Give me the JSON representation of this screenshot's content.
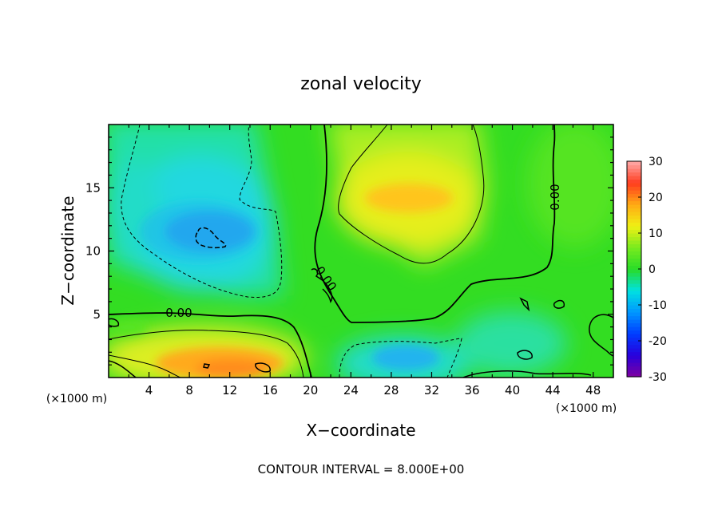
{
  "chart_data": {
    "type": "heatmap",
    "title": "zonal velocity",
    "xlabel": "X−coordinate",
    "ylabel": "Z−coordinate",
    "x_unit_left": "(×1000 m)",
    "x_unit_right": "(×1000 m)",
    "xlim": [
      0,
      50
    ],
    "ylim": [
      0,
      20
    ],
    "x_ticks": [
      4,
      8,
      12,
      16,
      20,
      24,
      28,
      32,
      36,
      40,
      44,
      48
    ],
    "y_ticks": [
      5,
      10,
      15
    ],
    "colorbar": {
      "range": [
        -30,
        30
      ],
      "ticks": [
        30,
        20,
        10,
        0,
        -10,
        -20,
        -30
      ]
    },
    "contour_label": "0.00",
    "footer": "CONTOUR INTERVAL = 8.000E+00",
    "extrema": [
      {
        "x": 10,
        "z": 11.5,
        "value": -17
      },
      {
        "x": 30,
        "z": 14.0,
        "value": 12
      },
      {
        "x": 11,
        "z": 1.5,
        "value": 14
      },
      {
        "x": 29,
        "z": 1.5,
        "value": -11
      }
    ]
  }
}
